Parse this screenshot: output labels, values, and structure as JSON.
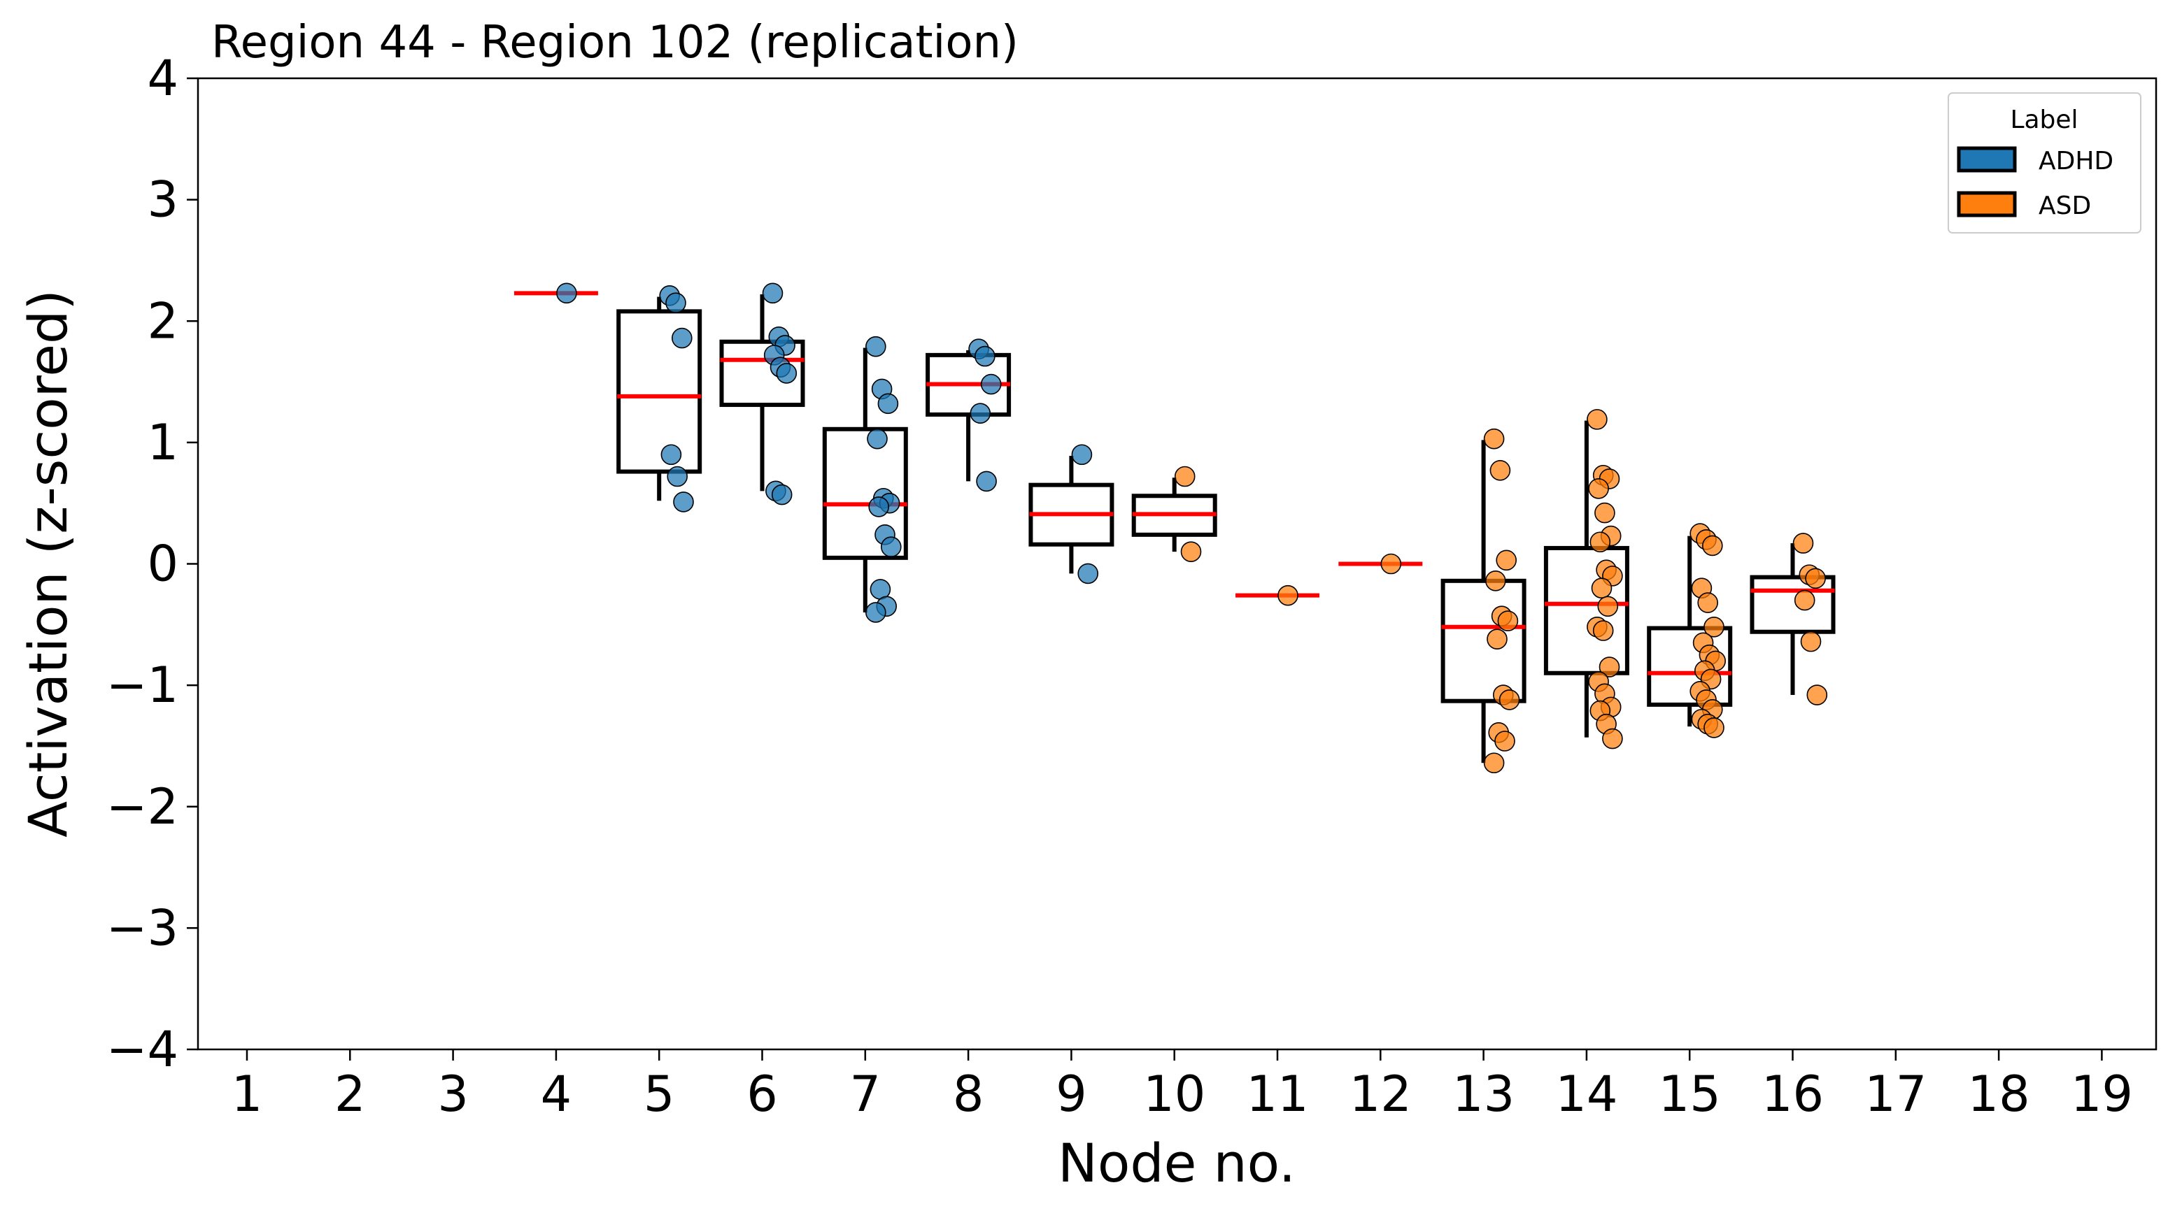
{
  "chart_data": {
    "type": "box",
    "title": "Region 44 - Region 102 (replication)",
    "xlabel": "Node no.",
    "ylabel": "Activation (z-scored)",
    "ylim": [
      -4,
      4
    ],
    "yticks": [
      -4,
      -3,
      -2,
      -1,
      0,
      1,
      2,
      3,
      4
    ],
    "ytick_labels": [
      "−4",
      "−3",
      "−2",
      "−1",
      "0",
      "1",
      "2",
      "3",
      "4"
    ],
    "categories": [
      "1",
      "2",
      "3",
      "4",
      "5",
      "6",
      "7",
      "8",
      "9",
      "10",
      "11",
      "12",
      "13",
      "14",
      "15",
      "16",
      "17",
      "18",
      "19"
    ],
    "grid": false,
    "legend": {
      "title": "Label",
      "position": "top-right",
      "entries": [
        {
          "name": "ADHD",
          "color": "#1f77b4"
        },
        {
          "name": "ASD",
          "color": "#ff7f0e"
        }
      ]
    },
    "median_color": "#ff0000",
    "boxes": [
      {
        "node": 4,
        "group": "ADHD",
        "q1": 2.23,
        "median": 2.23,
        "q3": 2.23,
        "whisker_low": 2.23,
        "whisker_high": 2.23
      },
      {
        "node": 5,
        "group": "ADHD",
        "q1": 0.76,
        "median": 1.38,
        "q3": 2.08,
        "whisker_low": 0.52,
        "whisker_high": 2.2
      },
      {
        "node": 6,
        "group": "ADHD",
        "q1": 1.31,
        "median": 1.68,
        "q3": 1.83,
        "whisker_low": 0.6,
        "whisker_high": 2.22
      },
      {
        "node": 7,
        "group": "ADHD",
        "q1": 0.05,
        "median": 0.49,
        "q3": 1.11,
        "whisker_low": -0.4,
        "whisker_high": 1.78
      },
      {
        "node": 8,
        "group": "ADHD",
        "q1": 1.23,
        "median": 1.48,
        "q3": 1.72,
        "whisker_low": 0.68,
        "whisker_high": 1.76
      },
      {
        "node": 9,
        "group": "ADHD",
        "q1": 0.16,
        "median": 0.41,
        "q3": 0.65,
        "whisker_low": -0.08,
        "whisker_high": 0.89
      },
      {
        "node": 10,
        "group": "ASD",
        "q1": 0.24,
        "median": 0.41,
        "q3": 0.56,
        "whisker_low": 0.1,
        "whisker_high": 0.71
      },
      {
        "node": 11,
        "group": "ASD",
        "q1": -0.26,
        "median": -0.26,
        "q3": -0.26,
        "whisker_low": -0.26,
        "whisker_high": -0.26
      },
      {
        "node": 12,
        "group": "ASD",
        "q1": 0.0,
        "median": 0.0,
        "q3": 0.0,
        "whisker_low": 0.0,
        "whisker_high": 0.0
      },
      {
        "node": 13,
        "group": "ASD",
        "q1": -1.13,
        "median": -0.52,
        "q3": -0.14,
        "whisker_low": -1.64,
        "whisker_high": 1.02
      },
      {
        "node": 14,
        "group": "ASD",
        "q1": -0.9,
        "median": -0.33,
        "q3": 0.13,
        "whisker_low": -1.43,
        "whisker_high": 1.18
      },
      {
        "node": 15,
        "group": "ASD",
        "q1": -1.16,
        "median": -0.9,
        "q3": -0.53,
        "whisker_low": -1.34,
        "whisker_high": 0.23
      },
      {
        "node": 16,
        "group": "ASD",
        "q1": -0.56,
        "median": -0.22,
        "q3": -0.11,
        "whisker_low": -1.08,
        "whisker_high": 0.17
      }
    ],
    "points": [
      {
        "node": 4,
        "group": "ADHD",
        "values": [
          2.23
        ]
      },
      {
        "node": 5,
        "group": "ADHD",
        "values": [
          2.21,
          2.15,
          1.86,
          0.9,
          0.72,
          0.51
        ]
      },
      {
        "node": 6,
        "group": "ADHD",
        "values": [
          2.23,
          1.87,
          1.8,
          1.72,
          1.62,
          1.57,
          0.6,
          0.57
        ]
      },
      {
        "node": 7,
        "group": "ADHD",
        "values": [
          1.79,
          1.44,
          1.32,
          1.03,
          0.54,
          0.5,
          0.47,
          0.24,
          0.14,
          -0.21,
          -0.35,
          -0.4
        ]
      },
      {
        "node": 8,
        "group": "ADHD",
        "values": [
          1.77,
          1.71,
          1.48,
          1.24,
          0.68
        ]
      },
      {
        "node": 9,
        "group": "ADHD",
        "values": [
          0.9,
          -0.08
        ]
      },
      {
        "node": 10,
        "group": "ASD",
        "values": [
          0.72,
          0.1
        ]
      },
      {
        "node": 11,
        "group": "ASD",
        "values": [
          -0.26
        ]
      },
      {
        "node": 12,
        "group": "ASD",
        "values": [
          0.0
        ]
      },
      {
        "node": 13,
        "group": "ASD",
        "values": [
          1.03,
          0.77,
          0.03,
          -0.14,
          -0.43,
          -0.47,
          -0.62,
          -1.08,
          -1.12,
          -1.39,
          -1.46,
          -1.64
        ]
      },
      {
        "node": 14,
        "group": "ASD",
        "values": [
          1.19,
          0.73,
          0.7,
          0.62,
          0.42,
          0.23,
          0.18,
          -0.05,
          -0.1,
          -0.2,
          -0.35,
          -0.52,
          -0.55,
          -0.85,
          -0.97,
          -1.07,
          -1.18,
          -1.21,
          -1.32,
          -1.44
        ]
      },
      {
        "node": 15,
        "group": "ASD",
        "values": [
          0.25,
          0.2,
          0.15,
          -0.2,
          -0.32,
          -0.52,
          -0.65,
          -0.75,
          -0.8,
          -0.88,
          -0.95,
          -1.05,
          -1.12,
          -1.2,
          -1.28,
          -1.32,
          -1.35
        ]
      },
      {
        "node": 16,
        "group": "ASD",
        "values": [
          0.17,
          -0.09,
          -0.12,
          -0.3,
          -0.64,
          -1.08
        ]
      }
    ]
  }
}
